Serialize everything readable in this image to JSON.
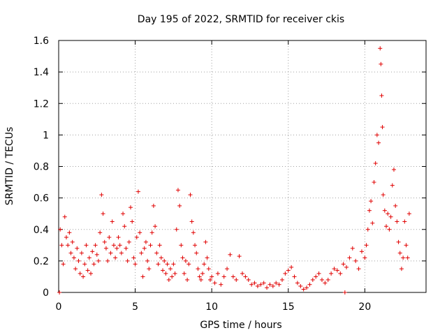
{
  "chart_data": {
    "type": "scatter",
    "title": "Day 195 of 2022, SRMTID for receiver ckis",
    "xlabel": "GPS time / hours",
    "ylabel": "SRMTID / TECUs",
    "xlim": [
      0,
      24
    ],
    "ylim": [
      0,
      1.6
    ],
    "xticks": [
      0,
      5,
      10,
      15,
      20
    ],
    "yticks": [
      0,
      0.2,
      0.4,
      0.6,
      0.8,
      1,
      1.2,
      1.4,
      1.6
    ],
    "grid": true,
    "series": [
      {
        "name": "SRMTID",
        "color": "#e00000",
        "marker": "plus",
        "points": [
          [
            0.05,
            0.0
          ],
          [
            0.1,
            0.4
          ],
          [
            0.2,
            0.3
          ],
          [
            0.3,
            0.18
          ],
          [
            0.4,
            0.48
          ],
          [
            0.5,
            0.35
          ],
          [
            0.6,
            0.3
          ],
          [
            0.7,
            0.38
          ],
          [
            0.8,
            0.25
          ],
          [
            0.9,
            0.32
          ],
          [
            1.0,
            0.22
          ],
          [
            1.1,
            0.15
          ],
          [
            1.2,
            0.28
          ],
          [
            1.3,
            0.2
          ],
          [
            1.4,
            0.12
          ],
          [
            1.5,
            0.25
          ],
          [
            1.6,
            0.1
          ],
          [
            1.7,
            0.18
          ],
          [
            1.8,
            0.3
          ],
          [
            1.9,
            0.14
          ],
          [
            2.0,
            0.22
          ],
          [
            2.1,
            0.12
          ],
          [
            2.2,
            0.26
          ],
          [
            2.3,
            0.18
          ],
          [
            2.4,
            0.3
          ],
          [
            2.5,
            0.24
          ],
          [
            2.6,
            0.2
          ],
          [
            2.7,
            0.38
          ],
          [
            2.8,
            0.62
          ],
          [
            2.9,
            0.5
          ],
          [
            3.0,
            0.32
          ],
          [
            3.1,
            0.28
          ],
          [
            3.2,
            0.2
          ],
          [
            3.3,
            0.35
          ],
          [
            3.4,
            0.25
          ],
          [
            3.5,
            0.45
          ],
          [
            3.6,
            0.3
          ],
          [
            3.7,
            0.22
          ],
          [
            3.8,
            0.28
          ],
          [
            3.9,
            0.35
          ],
          [
            4.0,
            0.3
          ],
          [
            4.1,
            0.25
          ],
          [
            4.2,
            0.5
          ],
          [
            4.3,
            0.42
          ],
          [
            4.4,
            0.28
          ],
          [
            4.5,
            0.2
          ],
          [
            4.6,
            0.32
          ],
          [
            4.7,
            0.54
          ],
          [
            4.8,
            0.45
          ],
          [
            4.9,
            0.22
          ],
          [
            5.0,
            0.18
          ],
          [
            5.1,
            0.35
          ],
          [
            5.2,
            0.64
          ],
          [
            5.3,
            0.38
          ],
          [
            5.4,
            0.25
          ],
          [
            5.5,
            0.1
          ],
          [
            5.6,
            0.28
          ],
          [
            5.7,
            0.32
          ],
          [
            5.8,
            0.2
          ],
          [
            5.9,
            0.15
          ],
          [
            6.0,
            0.3
          ],
          [
            6.1,
            0.38
          ],
          [
            6.2,
            0.55
          ],
          [
            6.3,
            0.42
          ],
          [
            6.4,
            0.25
          ],
          [
            6.5,
            0.18
          ],
          [
            6.6,
            0.3
          ],
          [
            6.7,
            0.22
          ],
          [
            6.8,
            0.14
          ],
          [
            6.9,
            0.2
          ],
          [
            7.0,
            0.12
          ],
          [
            7.1,
            0.18
          ],
          [
            7.2,
            0.08
          ],
          [
            7.3,
            0.15
          ],
          [
            7.4,
            0.1
          ],
          [
            7.5,
            0.18
          ],
          [
            7.6,
            0.12
          ],
          [
            7.7,
            0.4
          ],
          [
            7.8,
            0.65
          ],
          [
            7.9,
            0.55
          ],
          [
            8.0,
            0.3
          ],
          [
            8.1,
            0.22
          ],
          [
            8.2,
            0.12
          ],
          [
            8.3,
            0.2
          ],
          [
            8.4,
            0.08
          ],
          [
            8.5,
            0.18
          ],
          [
            8.6,
            0.62
          ],
          [
            8.7,
            0.45
          ],
          [
            8.8,
            0.38
          ],
          [
            8.9,
            0.3
          ],
          [
            9.0,
            0.25
          ],
          [
            9.1,
            0.15
          ],
          [
            9.2,
            0.1
          ],
          [
            9.3,
            0.08
          ],
          [
            9.4,
            0.12
          ],
          [
            9.5,
            0.18
          ],
          [
            9.6,
            0.32
          ],
          [
            9.7,
            0.22
          ],
          [
            9.8,
            0.15
          ],
          [
            9.9,
            0.08
          ],
          [
            10.0,
            0.1
          ],
          [
            10.2,
            0.06
          ],
          [
            10.4,
            0.12
          ],
          [
            10.6,
            0.05
          ],
          [
            10.8,
            0.1
          ],
          [
            11.0,
            0.15
          ],
          [
            11.2,
            0.24
          ],
          [
            11.4,
            0.1
          ],
          [
            11.6,
            0.08
          ],
          [
            11.8,
            0.23
          ],
          [
            12.0,
            0.12
          ],
          [
            12.2,
            0.1
          ],
          [
            12.4,
            0.08
          ],
          [
            12.6,
            0.05
          ],
          [
            12.8,
            0.06
          ],
          [
            13.0,
            0.04
          ],
          [
            13.2,
            0.05
          ],
          [
            13.4,
            0.06
          ],
          [
            13.6,
            0.03
          ],
          [
            13.8,
            0.05
          ],
          [
            14.0,
            0.04
          ],
          [
            14.2,
            0.06
          ],
          [
            14.4,
            0.05
          ],
          [
            14.6,
            0.08
          ],
          [
            14.8,
            0.12
          ],
          [
            15.0,
            0.14
          ],
          [
            15.2,
            0.16
          ],
          [
            15.4,
            0.1
          ],
          [
            15.6,
            0.06
          ],
          [
            15.8,
            0.04
          ],
          [
            16.0,
            0.02
          ],
          [
            16.2,
            0.03
          ],
          [
            16.4,
            0.05
          ],
          [
            16.6,
            0.08
          ],
          [
            16.8,
            0.1
          ],
          [
            17.0,
            0.12
          ],
          [
            17.2,
            0.08
          ],
          [
            17.4,
            0.06
          ],
          [
            17.6,
            0.08
          ],
          [
            17.8,
            0.12
          ],
          [
            18.0,
            0.15
          ],
          [
            18.2,
            0.14
          ],
          [
            18.4,
            0.12
          ],
          [
            18.6,
            0.18
          ],
          [
            18.7,
            0.0
          ],
          [
            18.8,
            0.16
          ],
          [
            19.0,
            0.22
          ],
          [
            19.2,
            0.28
          ],
          [
            19.4,
            0.2
          ],
          [
            19.6,
            0.15
          ],
          [
            19.8,
            0.26
          ],
          [
            20.0,
            0.22
          ],
          [
            20.1,
            0.3
          ],
          [
            20.2,
            0.4
          ],
          [
            20.3,
            0.52
          ],
          [
            20.4,
            0.58
          ],
          [
            20.5,
            0.44
          ],
          [
            20.6,
            0.7
          ],
          [
            20.7,
            0.82
          ],
          [
            20.8,
            1.0
          ],
          [
            20.9,
            0.95
          ],
          [
            21.0,
            1.55
          ],
          [
            21.05,
            1.45
          ],
          [
            21.1,
            1.25
          ],
          [
            21.15,
            1.05
          ],
          [
            21.2,
            0.62
          ],
          [
            21.3,
            0.52
          ],
          [
            21.4,
            0.42
          ],
          [
            21.5,
            0.5
          ],
          [
            21.6,
            0.4
          ],
          [
            21.7,
            0.48
          ],
          [
            21.8,
            0.68
          ],
          [
            21.9,
            0.78
          ],
          [
            22.0,
            0.55
          ],
          [
            22.1,
            0.45
          ],
          [
            22.2,
            0.32
          ],
          [
            22.3,
            0.25
          ],
          [
            22.4,
            0.15
          ],
          [
            22.5,
            0.22
          ],
          [
            22.6,
            0.45
          ],
          [
            22.7,
            0.3
          ],
          [
            22.8,
            0.22
          ],
          [
            22.9,
            0.5
          ]
        ]
      }
    ]
  }
}
